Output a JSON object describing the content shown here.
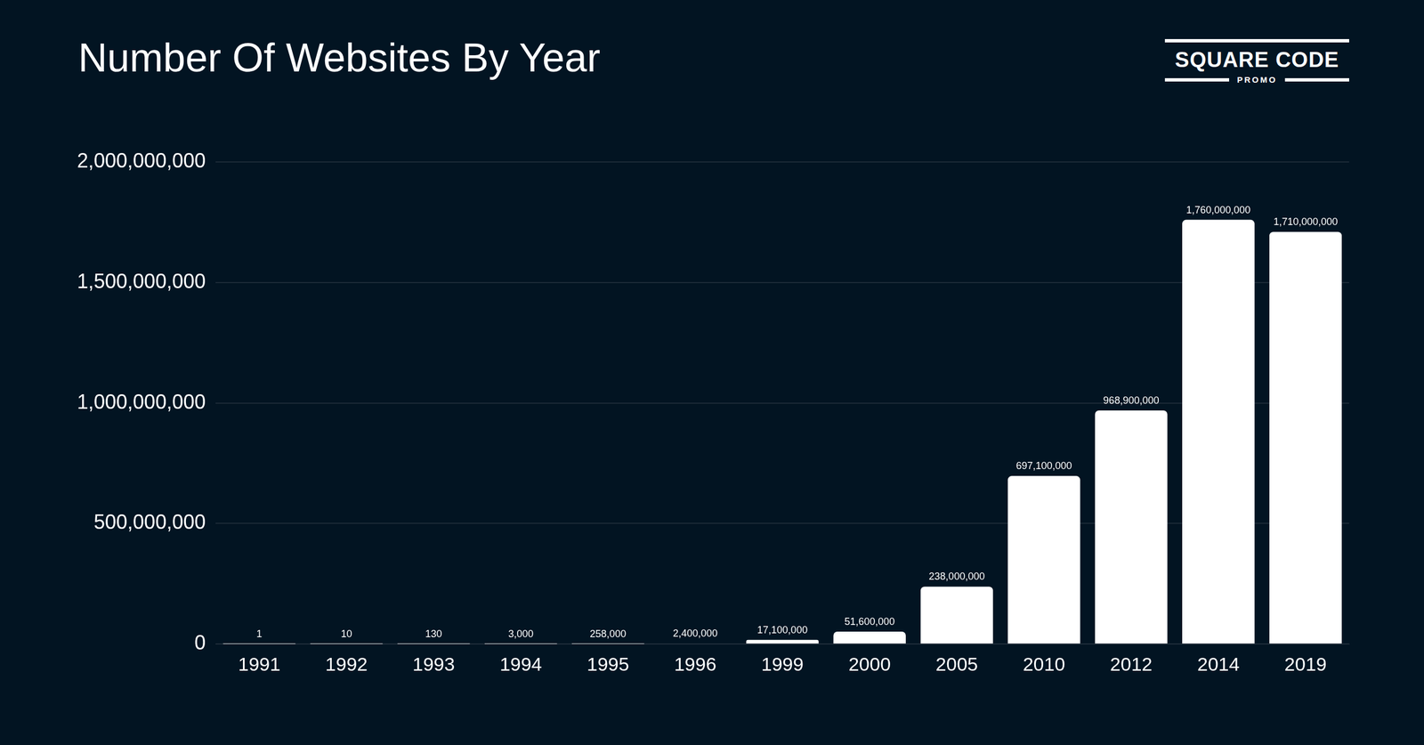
{
  "chart_data": {
    "type": "bar",
    "title": "Number Of Websites By Year",
    "annotations": [
      "SQUARE CODE",
      "PROMO"
    ],
    "categories": [
      "1991",
      "1992",
      "1993",
      "1994",
      "1995",
      "1996",
      "1999",
      "2000",
      "2005",
      "2010",
      "2012",
      "2014",
      "2019"
    ],
    "values": [
      1,
      10,
      130,
      3000,
      258000,
      2400000,
      17100000,
      51600000,
      238000000,
      697100000,
      968900000,
      1760000000,
      1710000000
    ],
    "value_labels": [
      "1",
      "10",
      "130",
      "3,000",
      "258,000",
      "2,400,000",
      "17,100,000",
      "51,600,000",
      "238,000,000",
      "697,100,000",
      "968,900,000",
      "1,760,000,000",
      "1,710,000,000"
    ],
    "data_labels": true,
    "color": "#ffffff",
    "ylim": [
      0,
      2000000000
    ],
    "yticks": [
      0,
      {
        "value": 500000000,
        "label": "500,000,000"
      },
      {
        "value": 1000000000,
        "label": "1,000,000,000"
      },
      {
        "value": 1500000000,
        "label": "1,500,000,000"
      },
      {
        "value": 2000000000,
        "label": "2,000,000,000"
      }
    ],
    "grid": true
  }
}
